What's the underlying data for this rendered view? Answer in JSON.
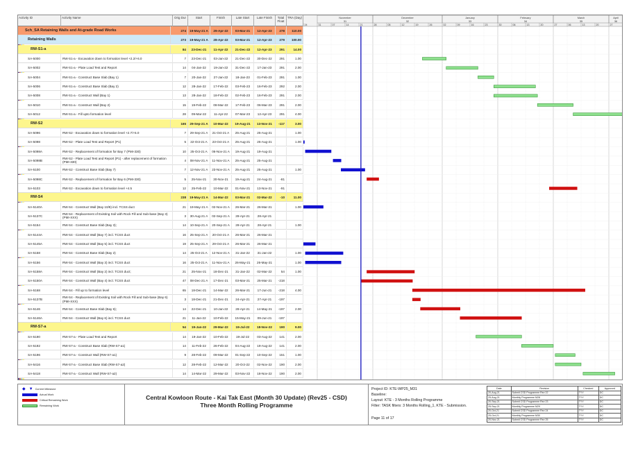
{
  "columns": [
    "Activity ID",
    "Activity Name",
    "Orig Dur",
    "Start",
    "Finish",
    "Late Start",
    "Late Finish",
    "Total Float",
    "TRA (Day)"
  ],
  "timescale": {
    "start": "24-Oct-21",
    "end": "03-Apr-22",
    "data_date": "22-Nov-21",
    "months": [
      {
        "label": "November",
        "week": "31",
        "from": "31-Oct-21",
        "to": "28-Nov-21"
      },
      {
        "label": "December",
        "week": "32",
        "from": "28-Nov-21",
        "to": "02-Jan-22"
      },
      {
        "label": "January",
        "week": "33",
        "from": "02-Jan-22",
        "to": "30-Jan-22"
      },
      {
        "label": "February",
        "week": "34",
        "from": "30-Jan-22",
        "to": "27-Feb-22"
      },
      {
        "label": "March",
        "week": "35",
        "from": "27-Feb-22",
        "to": "27-Mar-22"
      },
      {
        "label": "April",
        "week": "36",
        "from": "27-Mar-22",
        "to": "03-Apr-22"
      }
    ],
    "weeks": [
      "24",
      "31",
      "07",
      "14",
      "21",
      "28",
      "05",
      "12",
      "19",
      "26",
      "02",
      "09",
      "16",
      "23",
      "30",
      "06",
      "13",
      "20",
      "27",
      "06",
      "13",
      "20",
      "27"
    ]
  },
  "colors": {
    "actual": "#1010d0",
    "critical": "#d01010",
    "remaining": "#8ee08e",
    "data_date": "#2020c0"
  },
  "rows": [
    {
      "level": 0,
      "id": "Sch_SA Retaining Walls and At-grade Road Works",
      "name": "",
      "dur": "274",
      "start": "19-May-21 A",
      "finish": "29-Apr-22",
      "ls": "03-Mar-21",
      "lf": "12-Apr-23",
      "tf": "278",
      "tra": "110.00"
    },
    {
      "level": 1,
      "id": "Retaining Walls",
      "name": "",
      "dur": "273",
      "start": "19-May-21 A",
      "finish": "28-Apr-22",
      "ls": "03-Mar-21",
      "lf": "12-Apr-23",
      "tf": "279",
      "tra": "100.00"
    },
    {
      "level": 2,
      "id": "RW-S1-a",
      "name": "",
      "dur": "84",
      "start": "23-Dec-21",
      "finish": "11-Apr-22",
      "ls": "21-Dec-22",
      "lf": "12-Apr-23",
      "tf": "291",
      "tra": "14.00"
    },
    {
      "level": 3,
      "id": "SA-5000",
      "name": "RW-S1-a - Excavation down to formation level +2.2/+6.0",
      "dur": "7",
      "start": "23-Dec-21",
      "finish": "03-Jan-22",
      "ls": "21-Dec-22",
      "lf": "30-Dec-22",
      "tf": "291",
      "tra": "1.00",
      "bar": "remaining"
    },
    {
      "level": 3,
      "id": "SA-5002",
      "name": "RW-S1-a - Plate Load Test and Report",
      "dur": "14",
      "start": "04-Jan-22",
      "finish": "19-Jan-22",
      "ls": "31-Dec-22",
      "lf": "17-Jan-23",
      "tf": "291",
      "tra": "2.00",
      "bar": "remaining"
    },
    {
      "level": 3,
      "id": "SA-5004",
      "name": "RW-S1-a - Construct Base Slab (Bay 1)",
      "dur": "7",
      "start": "20-Jan-22",
      "finish": "27-Jan-22",
      "ls": "18-Jan-23",
      "lf": "01-Feb-23",
      "tf": "291",
      "tra": "1.00",
      "bar": "remaining"
    },
    {
      "level": 3,
      "id": "SA-5006",
      "name": "RW-S1-a - Construct Base Slab (Bay 2)",
      "dur": "12",
      "start": "28-Jan-22",
      "finish": "17-Feb-22",
      "ls": "03-Feb-23",
      "lf": "16-Feb-23",
      "tf": "292",
      "tra": "2.00",
      "bar": "remaining"
    },
    {
      "level": 3,
      "id": "SA-5008",
      "name": "RW-S1-a - Construct Wall (Bay 1)",
      "dur": "13",
      "start": "28-Jan-22",
      "finish": "18-Feb-22",
      "ls": "02-Feb-23",
      "lf": "16-Feb-23",
      "tf": "291",
      "tra": "2.00",
      "bar": "remaining"
    },
    {
      "level": 3,
      "id": "SA-5010",
      "name": "RW-S1-a - Construct Wall (Bay 2)",
      "dur": "15",
      "start": "19-Feb-22",
      "finish": "08-Mar-22",
      "ls": "17-Feb-23",
      "lf": "06-Mar-23",
      "tf": "291",
      "tra": "2.00",
      "bar": "remaining"
    },
    {
      "level": 3,
      "id": "SA-5012",
      "name": "RW-S1-a - Fill upto formation level",
      "dur": "28",
      "start": "09-Mar-22",
      "finish": "11-Apr-22",
      "ls": "07-Mar-23",
      "lf": "12-Apr-23",
      "tf": "291",
      "tra": "4.00",
      "bar": "remaining"
    },
    {
      "level": 2,
      "id": "RW-S2",
      "name": "",
      "dur": "165",
      "start": "29-Sep-21 A",
      "finish": "10-Mar-22",
      "ls": "19-Aug-21",
      "lf": "13-Nov-21",
      "tf": "-117",
      "tra": "3.00"
    },
    {
      "level": 3,
      "id": "SA-5096",
      "name": "RW-S2 - Excavation down to formation level +2.7/+5.0",
      "dur": "7",
      "start": "29-Sep-21 A",
      "finish": "21-Oct-21 A",
      "ls": "25-Aug-21",
      "lf": "25-Aug-21",
      "tf": "",
      "tra": "1.00",
      "bar": "actual"
    },
    {
      "level": 3,
      "id": "SA-5098",
      "name": "RW-S2 - Plate Load Test and Report (P1)",
      "dur": "5",
      "start": "22-Oct-21 A",
      "finish": "23-Oct-21 A",
      "ls": "25-Aug-21",
      "lf": "25-Aug-21",
      "tf": "",
      "tra": "1.00",
      "bar": "actual"
    },
    {
      "level": 3,
      "id": "SA-5098A",
      "name": "RW-S2 - Replacement of formation for Bay 7  (PMI-330)",
      "dur": "10",
      "start": "25-Oct-21 A",
      "finish": "06-Nov-21 A",
      "ls": "19-Aug-21",
      "lf": "19-Aug-21",
      "tf": "",
      "tra": "",
      "bar": "actual"
    },
    {
      "level": 3,
      "id": "SA-5098B",
      "name": "RW-S2 - Plate Load Test and Report (P1)  - after replacement of formation (PMI-330)",
      "dur": "4",
      "start": "08-Nov-21 A",
      "finish": "11-Nov-21 A",
      "ls": "25-Aug-21",
      "lf": "25-Aug-21",
      "tf": "",
      "tra": "",
      "bar": "actual"
    },
    {
      "level": 3,
      "id": "SA-5100",
      "name": "RW-S2 - Construct Base Slab (Bay 7)",
      "dur": "7",
      "start": "12-Nov-21 A",
      "finish": "23-Nov-21 A",
      "ls": "25-Aug-21",
      "lf": "25-Aug-21",
      "tf": "",
      "tra": "1.00",
      "bar": "actual"
    },
    {
      "level": 3,
      "id": "SA-5098C",
      "name": "RW-S2 - Replacement of formation for Bay 6  (PMI-330)",
      "dur": "5",
      "start": "25-Nov-21",
      "finish": "30-Nov-21",
      "ls": "19-Aug-21",
      "lf": "24-Aug-21",
      "tf": "-81",
      "tra": "",
      "bar": "critical"
    },
    {
      "level": 3,
      "id": "SA-5103",
      "name": "RW-S2 - Excavation down to formation level +4.5",
      "dur": "12",
      "start": "25-Feb-22",
      "finish": "10-Mar-22",
      "ls": "01-Nov-21",
      "lf": "13-Nov-21",
      "tf": "-91",
      "tra": "",
      "bar": "critical"
    },
    {
      "level": 2,
      "id": "RW-S4",
      "name": "",
      "dur": "238",
      "start": "19-May-21 A",
      "finish": "14-Mar-22",
      "ls": "03-Mar-21",
      "lf": "02-Mar-22",
      "tf": "-10",
      "tra": "11.00"
    },
    {
      "level": 3,
      "id": "SA-5140A",
      "name": "RW-S4 - Construct Wall (Bay 10/8) incl. TCSS duct",
      "dur": "21",
      "start": "19-May-21 A",
      "finish": "02-Nov-21 A",
      "ls": "26-Mar-21",
      "lf": "26-Mar-21",
      "tf": "",
      "tra": "1.00",
      "bar": "actual"
    },
    {
      "level": 3,
      "id": "SA-5137C",
      "name": "RW-S4 - Replacement of Existing Soil with Rock Fill and Sub-base (Bay 3) (PMI-XXX)",
      "dur": "3",
      "start": "30-Aug-21 A",
      "finish": "02-Sep-21 A",
      "ls": "28-Apr-21",
      "lf": "28-Apr-21",
      "tf": "",
      "tra": "",
      "bar": "actual"
    },
    {
      "level": 3,
      "id": "SA-5154",
      "name": "RW-S4 - Construct Base Slab (Bay 3);",
      "dur": "14",
      "start": "10-Sep-21 A",
      "finish": "20-Sep-21 A",
      "ls": "28-Apr-21",
      "lf": "28-Apr-21",
      "tf": "",
      "tra": "1.00",
      "bar": "actual"
    },
    {
      "level": 3,
      "id": "SA-5144A",
      "name": "RW-S4 - Construct Wall (Bay 7) incl. TCSS duct",
      "dur": "16",
      "start": "25-Sep-21 A",
      "finish": "20-Oct-21 A",
      "ls": "26-Mar-21",
      "lf": "26-Mar-21",
      "tf": "",
      "tra": "",
      "bar": "actual"
    },
    {
      "level": 3,
      "id": "SA-5145A",
      "name": "RW-S4 - Construct Wall (Bay 5) incl. TCSS duct",
      "dur": "19",
      "start": "25-Sep-21 A",
      "finish": "29-Oct-21 A",
      "ls": "26-Mar-21",
      "lf": "26-Mar-21",
      "tf": "",
      "tra": "",
      "bar": "actual"
    },
    {
      "level": 3,
      "id": "SA-5158",
      "name": "RW-S4 - Construct Base Slab (Bay 2)",
      "dur": "14",
      "start": "25-Oct-21 A",
      "finish": "12-Nov-21 A",
      "ls": "31-Jan-22",
      "lf": "31-Jan-22",
      "tf": "",
      "tra": "1.00",
      "bar": "actual"
    },
    {
      "level": 3,
      "id": "SA-5156",
      "name": "RW-S4 - Construct Wall (Bay 3) incl. TCSS duct",
      "dur": "16",
      "start": "25-Oct-21 A",
      "finish": "11-Nov-21 A",
      "ls": "26-May-21",
      "lf": "26-May-21",
      "tf": "",
      "tra": "1.00",
      "bar": "actual"
    },
    {
      "level": 3,
      "id": "SA-5158A",
      "name": "RW-S4 - Construct Wall (Bay 2) incl. TCSS duct;",
      "dur": "21",
      "start": "25-Nov-21",
      "finish": "18-Dec-21",
      "ls": "31-Jan-22",
      "lf": "02-Mar-22",
      "tf": "54",
      "tra": "1.00",
      "bar": "critical"
    },
    {
      "level": 3,
      "id": "SA-5150A",
      "name": "RW-S4 - Construct Wall (Bay 4) incl. TCSS duct",
      "dur": "47",
      "start": "08-Dec-21 A",
      "finish": "17-Dec-21",
      "ls": "03-Mar-21",
      "lf": "25-Mar-21",
      "tf": "-218",
      "tra": "",
      "bar": "critical",
      "bar_start": "22-Nov-21"
    },
    {
      "level": 3,
      "id": "SA-5168",
      "name": "RW-S4 - Fill up to formation level",
      "dur": "65",
      "start": "18-Dec-21",
      "finish": "14-Mar-22",
      "ls": "26-Mar-21",
      "lf": "17-Jun-21",
      "tf": "-218",
      "tra": "4.00",
      "bar": "critical"
    },
    {
      "level": 3,
      "id": "SA-5137B",
      "name": "RW-S4 - Replacement of Existing Soil with Rock Fill and Sub-base (Bay 6) (PMI-XXX)",
      "dur": "3",
      "start": "18-Dec-21",
      "finish": "21-Dec-21",
      "ls": "24-Apr-21",
      "lf": "27-Apr-21",
      "tf": "-197",
      "tra": "",
      "bar": "critical"
    },
    {
      "level": 3,
      "id": "SA-5146",
      "name": "RW-S4 - Construct Base Slab (Bay 6);",
      "dur": "14",
      "start": "22-Dec-21",
      "finish": "10-Jan-22",
      "ls": "28-Apr-21",
      "lf": "14-May-21",
      "tf": "-197",
      "tra": "2.00",
      "bar": "critical"
    },
    {
      "level": 3,
      "id": "SA-5146A",
      "name": "RW-S4 - Construct Wall (Bay 6) incl. TCSS duct",
      "dur": "21",
      "start": "11-Jan-22",
      "finish": "10-Feb-22",
      "ls": "15-May-21",
      "lf": "09-Jun-21",
      "tf": "-197",
      "tra": "",
      "bar": "critical"
    },
    {
      "level": 2,
      "id": "RW-S7-a",
      "name": "",
      "dur": "54",
      "start": "19-Jan-22",
      "finish": "29-Mar-22",
      "ls": "19-Jul-22",
      "lf": "18-Nov-22",
      "tf": "190",
      "tra": "9.00"
    },
    {
      "level": 3,
      "id": "SA-5190",
      "name": "RW-S7-a - Plate Load Test and Report",
      "dur": "14",
      "start": "19-Jan-22",
      "finish": "10-Feb-22",
      "ls": "19-Jul-22",
      "lf": "03-Aug-22",
      "tf": "141",
      "tra": "2.00",
      "bar": "remaining"
    },
    {
      "level": 3,
      "id": "SA-5192",
      "name": "RW-S7-a - Construct Base Slab (RW-S7-a1)",
      "dur": "14",
      "start": "11-Feb-22",
      "finish": "26-Feb-22",
      "ls": "04-Aug-22",
      "lf": "19-Aug-22",
      "tf": "141",
      "tra": "2.00",
      "bar": "remaining"
    },
    {
      "level": 3,
      "id": "SA-5196",
      "name": "RW-S7-a - Construct Wall (RW-S7-a1)",
      "dur": "9",
      "start": "28-Feb-22",
      "finish": "09-Mar-22",
      "ls": "01-Sep-22",
      "lf": "10-Sep-22",
      "tf": "151",
      "tra": "1.00",
      "bar": "remaining"
    },
    {
      "level": 3,
      "id": "SA-5416",
      "name": "RW-S7-a - Construct Base Slab (RW-S7-a2)",
      "dur": "12",
      "start": "28-Feb-22",
      "finish": "12-Mar-22",
      "ls": "20-Oct-22",
      "lf": "02-Nov-22",
      "tf": "190",
      "tra": "2.00",
      "bar": "remaining"
    },
    {
      "level": 3,
      "id": "SA-5418",
      "name": "RW-S7-a - Construct Wall (RW-S7-a2)",
      "dur": "14",
      "start": "14-Mar-22",
      "finish": "29-Mar-22",
      "ls": "03-Nov-22",
      "lf": "18-Nov-22",
      "tf": "190",
      "tra": "2.00",
      "bar": "remaining"
    }
  ],
  "legend": [
    "Current Milestone",
    "Actual Work",
    "Critical Remaining Work",
    "Remaining Work"
  ],
  "title": {
    "line1": "Central Kowloon Route - Kai Tak East (Month 30 Update) (Rev25 - CSD)",
    "line2": "Three Month Rolling Programme"
  },
  "info": {
    "project": "Project ID: KTE-WP25_M31",
    "baseline": "Baseline:",
    "layout": "Layout: KTE - 3 Months Rolling Programme",
    "filter": "Filter: TASK filters: 3 Months Rolling_1, KTE - Submission.",
    "page": "Page 11 of 17"
  },
  "revisions": {
    "headers": [
      "Date",
      "Revision",
      "Checked",
      "Approved"
    ],
    "rows": [
      [
        "20-Aug-21",
        "Submit CSD Programme Rev 22",
        "TYY",
        "DC"
      ],
      [
        "25-Aug-21",
        "Monthly Programme M28",
        "TYY",
        "DC"
      ],
      [
        "20-Sep-21",
        "Submit CSD Programme Rev 23",
        "TYY",
        "DC"
      ],
      [
        "25-Sep-21",
        "Monthly Programme M29",
        "TYY",
        "DC"
      ],
      [
        "20-Oct-21",
        "Submit CSD Programme Rev 24",
        "TYY",
        "DC"
      ],
      [
        "25-Oct-21",
        "Monthly Programme M30",
        "TYY",
        "DC"
      ],
      [
        "20-Nov-21",
        "Submit CSD Programme Rev 25",
        "TYY",
        "DC"
      ]
    ]
  }
}
